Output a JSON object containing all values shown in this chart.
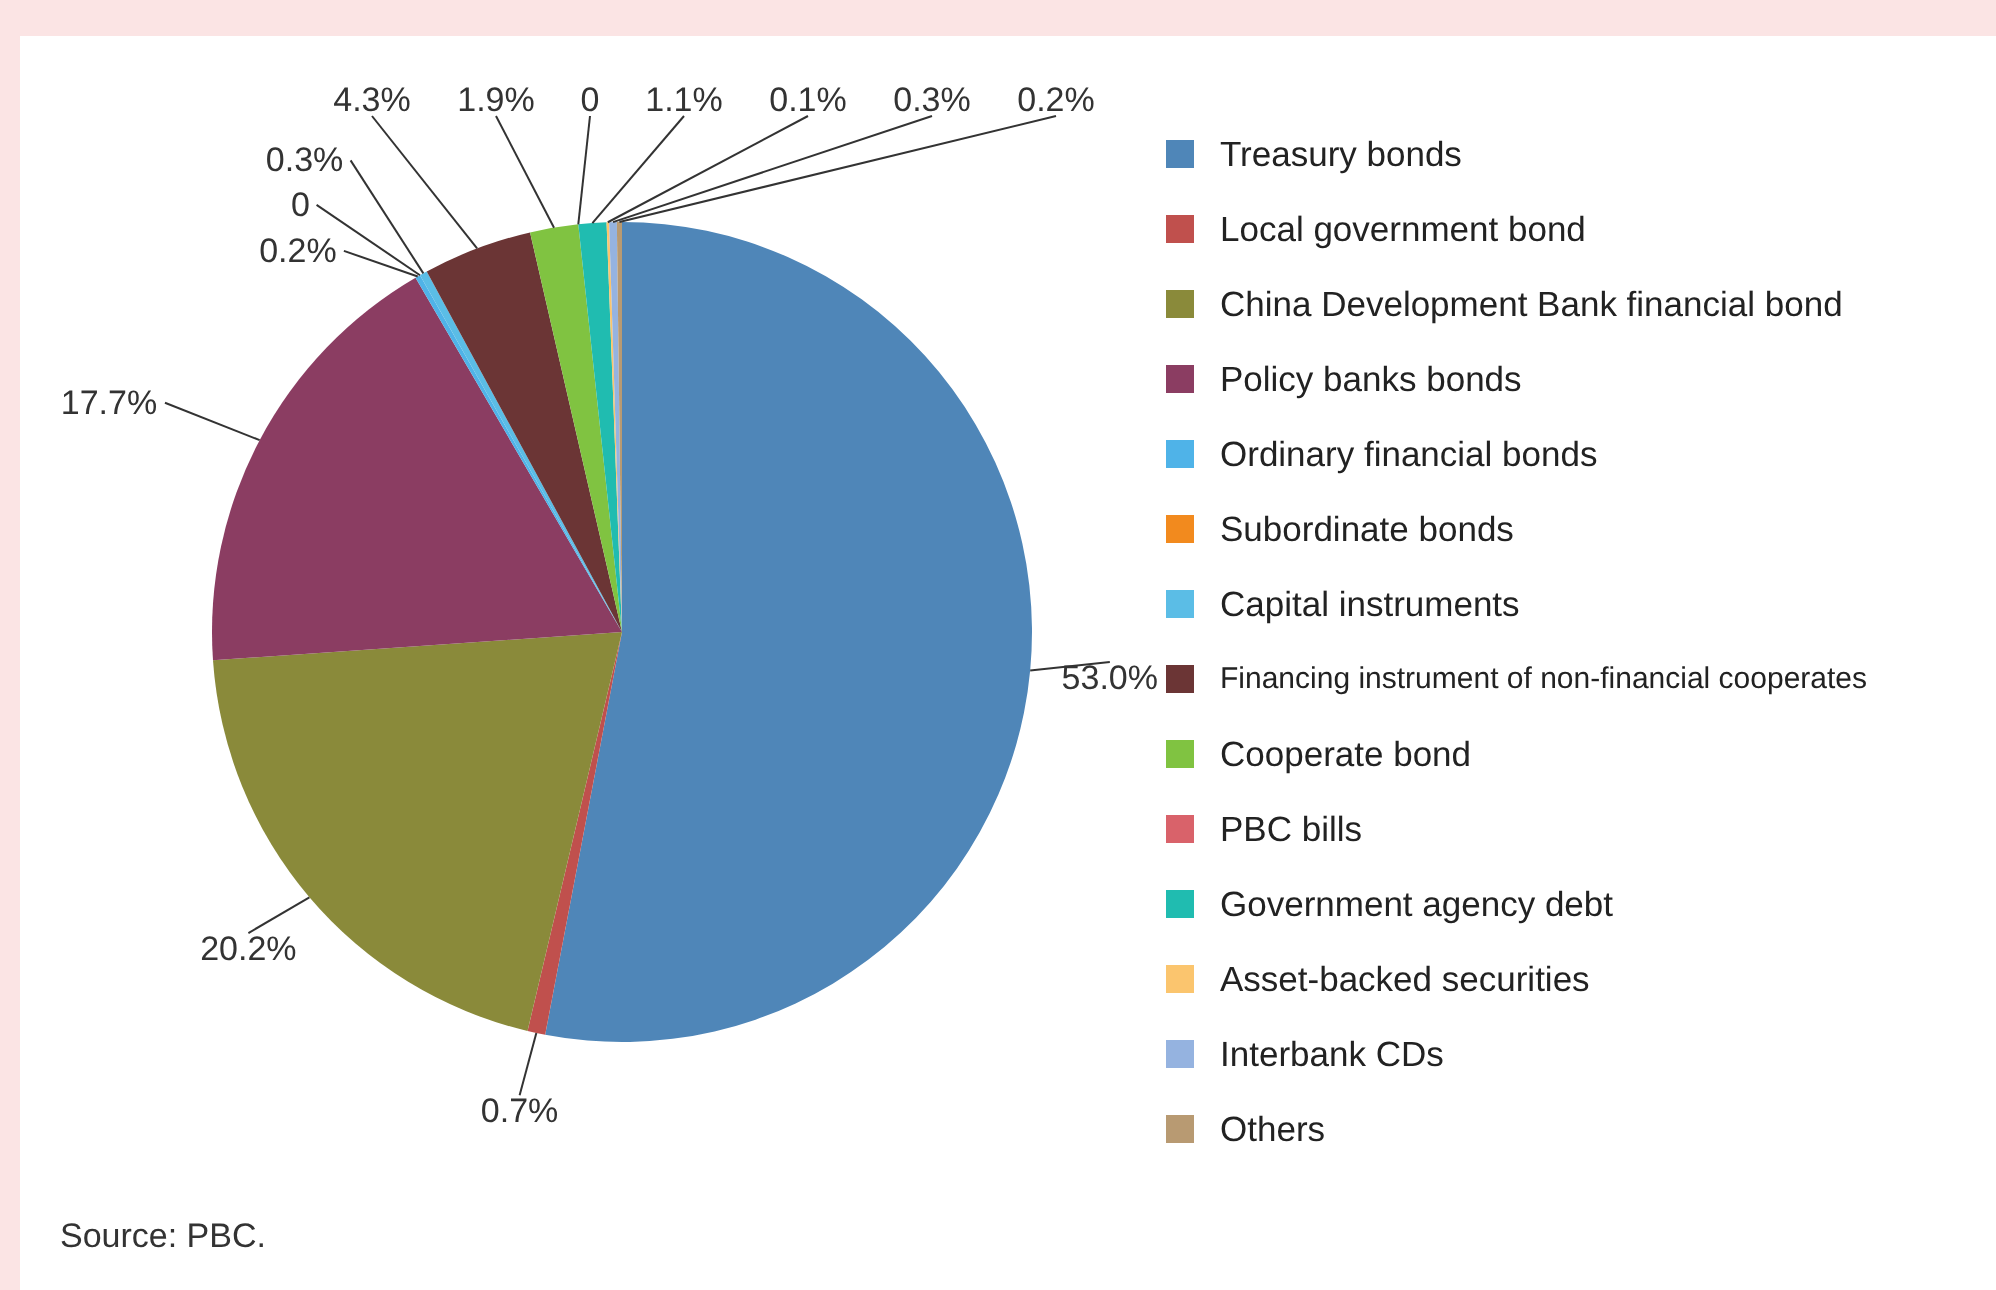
{
  "chart_data": {
    "type": "pie",
    "categories": [
      "Treasury bonds",
      "Local government bond",
      "China Development Bank financial bond",
      "Policy banks bonds",
      "Ordinary financial bonds",
      "Subordinate bonds",
      "Capital instruments",
      "Financing instrument of non-financial cooperates",
      "Cooperate bond",
      "PBC bills",
      "Government agency debt",
      "Asset-backed securities",
      "Interbank CDs",
      "Others"
    ],
    "values": [
      53.0,
      0.7,
      20.2,
      17.7,
      0.2,
      0,
      0.3,
      4.3,
      1.9,
      0,
      1.1,
      0.1,
      0.3,
      0.2
    ],
    "value_labels": [
      "53.0%",
      "0.7%",
      "20.2%",
      "17.7%",
      "0.2%",
      "0",
      "0.3%",
      "4.3%",
      "1.9%",
      "0",
      "1.1%",
      "0.1%",
      "0.3%",
      "0.2%"
    ],
    "colors": [
      "#4f86b8",
      "#c0504d",
      "#8a8a3a",
      "#8b3d62",
      "#4fb3e8",
      "#f28a1e",
      "#5bbde6",
      "#6b3535",
      "#80c341",
      "#d9626a",
      "#20bcb0",
      "#fbc56e",
      "#95b3e0",
      "#b89a72"
    ],
    "legend": "right",
    "annotations": [
      "Source: PBC."
    ]
  }
}
